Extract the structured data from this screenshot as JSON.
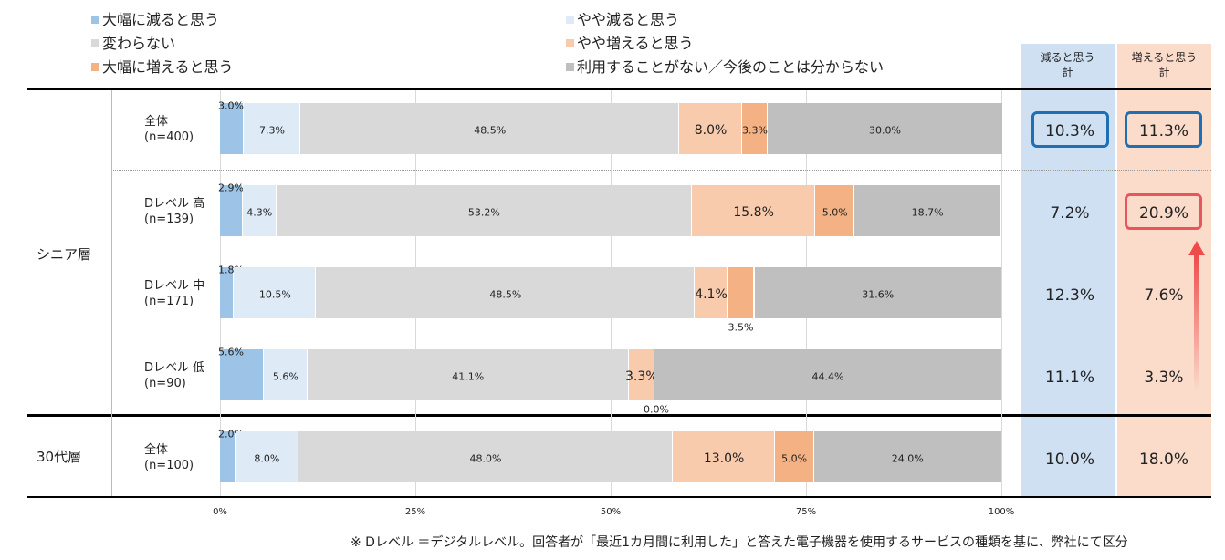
{
  "legend": [
    {
      "label": "大幅に減ると思う",
      "color": "#9DC3E6"
    },
    {
      "label": "やや減ると思う",
      "color": "#DEEBF7"
    },
    {
      "label": "変わらない",
      "color": "#D9D9D9"
    },
    {
      "label": "やや増えると思う",
      "color": "#F8CBAD"
    },
    {
      "label": "大幅に増えると思う",
      "color": "#F4B183"
    },
    {
      "label": "利用することがない／今後のことは分からない",
      "color": "#BFBFBF"
    }
  ],
  "groups": {
    "senior": "シニア層",
    "thirties": "30代層"
  },
  "summary_headers": {
    "decrease": "減ると思う\n計",
    "increase": "増えると思う\n計"
  },
  "colors": {
    "decrease_col": "#CFE0F3",
    "increase_col": "#FBDCCB",
    "highlight_blue": "#1F6FB5",
    "highlight_red": "#E8555B",
    "arrow_red": "#EE4B4B"
  },
  "chart_data": {
    "type": "bar",
    "orientation": "horizontal",
    "stacked": true,
    "xlim": [
      0,
      100
    ],
    "x_ticks": [
      "0%",
      "25%",
      "50%",
      "75%",
      "100%"
    ],
    "rows": [
      {
        "label": "全体",
        "n": "(n=400)",
        "values": [
          3.0,
          7.3,
          48.5,
          8.0,
          3.3,
          30.0
        ],
        "labels": [
          "3.0%",
          "7.3%",
          "48.5%",
          "8.0%",
          "3.3%",
          "30.0%"
        ],
        "decrease_total": "10.3%",
        "increase_total": "11.3%"
      },
      {
        "label": "Dレベル 高",
        "n": "(n=139)",
        "values": [
          2.9,
          4.3,
          53.2,
          15.8,
          5.0,
          18.7
        ],
        "labels": [
          "2.9%",
          "4.3%",
          "53.2%",
          "15.8%",
          "5.0%",
          "18.7%"
        ],
        "decrease_total": "7.2%",
        "increase_total": "20.9%"
      },
      {
        "label": "Dレベル 中",
        "n": "(n=171)",
        "values": [
          1.8,
          10.5,
          48.5,
          4.1,
          3.5,
          31.6
        ],
        "labels": [
          "1.8%",
          "10.5%",
          "48.5%",
          "4.1%",
          "3.5%",
          "31.6%"
        ],
        "decrease_total": "12.3%",
        "increase_total": "7.6%"
      },
      {
        "label": "Dレベル 低",
        "n": "(n=90)",
        "values": [
          5.6,
          5.6,
          41.1,
          3.3,
          0.0,
          44.4
        ],
        "labels": [
          "5.6%",
          "5.6%",
          "41.1%",
          "3.3%",
          "0.0%",
          "44.4%"
        ],
        "decrease_total": "11.1%",
        "increase_total": "3.3%"
      },
      {
        "label": "全体",
        "n": "(n=100)",
        "values": [
          2.0,
          8.0,
          48.0,
          13.0,
          5.0,
          24.0
        ],
        "labels": [
          "2.0%",
          "8.0%",
          "48.0%",
          "13.0%",
          "5.0%",
          "24.0%"
        ],
        "decrease_total": "10.0%",
        "increase_total": "18.0%"
      }
    ]
  },
  "footnote": "※ Dレベル ＝デジタルレベル。回答者が「最近1カ月間に利用した」と答えた電子機器を使用するサービスの種類を基に、弊社にて区分"
}
